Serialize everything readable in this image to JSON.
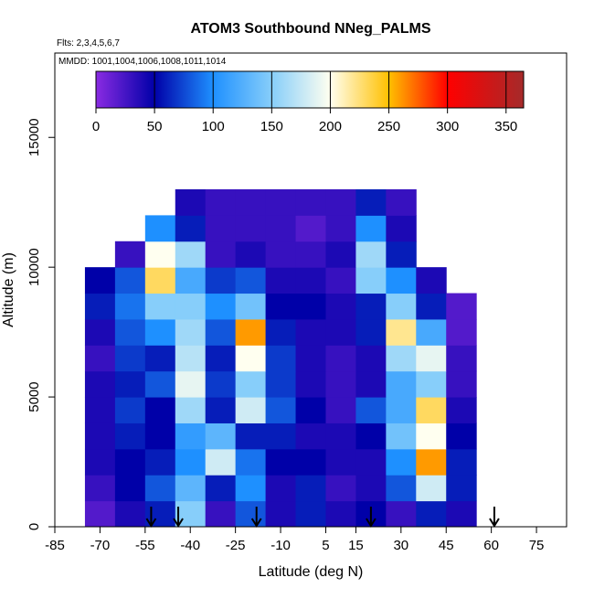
{
  "chart_data": {
    "type": "heatmap",
    "title": "ATOM3 Southbound NNeg_PALMS",
    "subtitle": "Flts: 2,3,4,5,6,7",
    "annotation": "MMDD: 1001,1004,1006,1008,1011,1014",
    "x_label": "Latitude (deg N)",
    "y_label": "Altitude (m)",
    "xlim": [
      -85,
      85
    ],
    "xticks": [
      -85,
      -70,
      -55,
      -40,
      -25,
      -10,
      5,
      15,
      30,
      45,
      60,
      75
    ],
    "ylim": [
      0,
      18250
    ],
    "yticks": [
      0,
      5000,
      10000,
      15000
    ],
    "lat_bins": [
      -75,
      -65,
      -55,
      -45,
      -35,
      -25,
      -15,
      -5,
      5,
      15,
      25,
      35,
      45,
      55
    ],
    "alt_bins": [
      0,
      1000,
      2000,
      3000,
      4000,
      5000,
      6000,
      7000,
      8000,
      9000,
      10000,
      11000,
      12000,
      13000
    ],
    "values": [
      [
        20,
        40,
        60,
        150,
        30,
        80,
        40,
        60,
        40,
        50,
        30,
        60,
        40
      ],
      [
        30,
        50,
        80,
        130,
        60,
        100,
        40,
        60,
        30,
        40,
        80,
        180,
        60
      ],
      [
        40,
        50,
        60,
        100,
        180,
        90,
        50,
        50,
        40,
        40,
        100,
        260,
        60
      ],
      [
        40,
        60,
        50,
        110,
        130,
        60,
        60,
        40,
        40,
        50,
        140,
        200,
        50
      ],
      [
        40,
        70,
        50,
        160,
        60,
        180,
        80,
        50,
        30,
        80,
        120,
        230,
        40
      ],
      [
        40,
        60,
        80,
        190,
        70,
        150,
        70,
        40,
        30,
        40,
        120,
        150,
        30
      ],
      [
        30,
        70,
        60,
        170,
        60,
        200,
        70,
        40,
        30,
        40,
        160,
        190,
        30
      ],
      [
        40,
        80,
        100,
        160,
        80,
        260,
        60,
        40,
        40,
        60,
        220,
        120,
        20
      ],
      [
        60,
        90,
        150,
        150,
        100,
        140,
        50,
        50,
        40,
        60,
        150,
        60,
        20
      ],
      [
        50,
        80,
        230,
        120,
        70,
        80,
        40,
        40,
        30,
        150,
        100,
        40,
        null
      ],
      [
        null,
        30,
        200,
        160,
        30,
        40,
        30,
        30,
        40,
        160,
        60,
        null,
        null
      ],
      [
        null,
        null,
        100,
        60,
        30,
        30,
        30,
        20,
        30,
        100,
        40,
        null,
        null
      ],
      [
        null,
        null,
        null,
        40,
        30,
        30,
        30,
        30,
        30,
        60,
        30,
        null,
        null
      ]
    ],
    "arrows": [
      -53,
      -44,
      -18,
      20,
      61
    ],
    "colorbar": {
      "lim": [
        0,
        365
      ],
      "ticks": [
        0,
        50,
        100,
        150,
        200,
        250,
        300,
        350
      ],
      "stops": [
        {
          "value": 0,
          "color": "#8a2be2"
        },
        {
          "value": 50,
          "color": "#0000a8"
        },
        {
          "value": 100,
          "color": "#1e90ff"
        },
        {
          "value": 150,
          "color": "#87cefa"
        },
        {
          "value": 200,
          "color": "#fffff0"
        },
        {
          "value": 250,
          "color": "#ffc000"
        },
        {
          "value": 300,
          "color": "#ff0000"
        },
        {
          "value": 365,
          "color": "#a52a2a"
        }
      ]
    }
  }
}
